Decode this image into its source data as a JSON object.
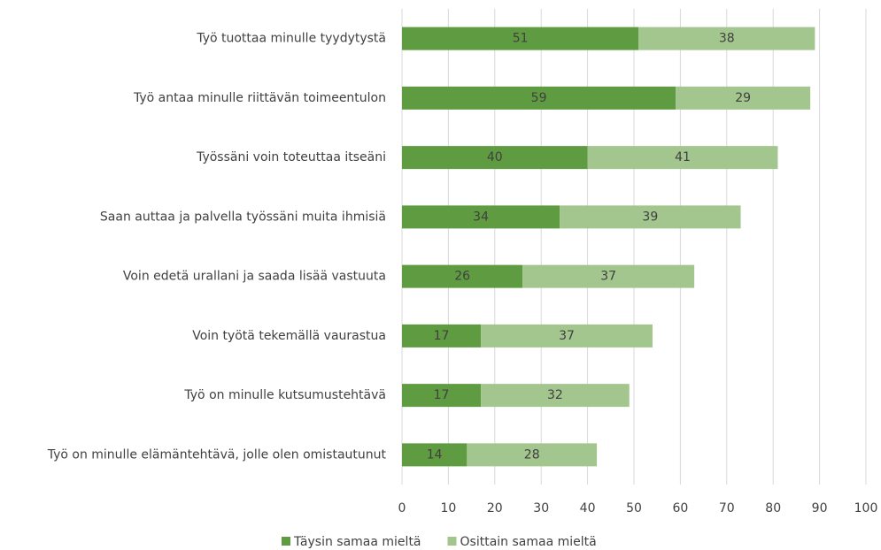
{
  "chart_data": {
    "type": "bar",
    "orientation": "horizontal",
    "stacked": true,
    "categories": [
      "Työ tuottaa minulle tyydytystä",
      "Työ antaa minulle riittävän toimeentulon",
      "Työssäni voin toteuttaa itseäni",
      "Saan auttaa ja palvella työssäni muita ihmisiä",
      "Voin edetä urallani ja saada lisää vastuuta",
      "Voin työtä tekemällä vaurastua",
      "Työ on minulle kutsumustehtävä",
      "Työ on minulle elämäntehtävä, jolle olen omistautunut"
    ],
    "series": [
      {
        "name": "Täysin samaa mieltä",
        "color": "#5f9b41",
        "values": [
          51,
          59,
          40,
          34,
          26,
          17,
          17,
          14
        ]
      },
      {
        "name": "Osittain samaa mieltä",
        "color": "#a3c58e",
        "values": [
          38,
          29,
          41,
          39,
          37,
          37,
          32,
          28
        ]
      }
    ],
    "xlim": [
      0,
      100
    ],
    "xticks": [
      0,
      10,
      20,
      30,
      40,
      50,
      60,
      70,
      80,
      90,
      100
    ],
    "grid": true,
    "legend": "bottom"
  }
}
